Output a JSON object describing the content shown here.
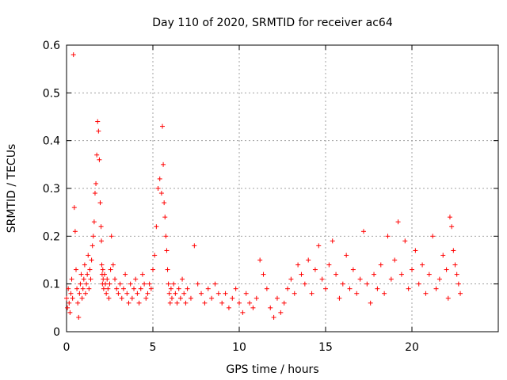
{
  "chart_data": {
    "type": "scatter",
    "title": "Day 110 of 2020, SRMTID for receiver ac64",
    "xlabel": "GPS time / hours",
    "ylabel": "SRMTID / TECUs",
    "xlim": [
      0,
      25
    ],
    "ylim": [
      0,
      0.6
    ],
    "xticks": [
      0,
      5,
      10,
      15,
      20
    ],
    "yticks": [
      0,
      0.1,
      0.2,
      0.3,
      0.4,
      0.5,
      0.6
    ],
    "xtick_labels": [
      "0",
      "5",
      "10",
      "15",
      "20"
    ],
    "ytick_labels": [
      "0",
      "0.1",
      "0.2",
      "0.3",
      "0.4",
      "0.5",
      "0.6"
    ],
    "grid": true,
    "marker": "plus",
    "color": "#ff0000",
    "series": [
      {
        "name": "SRMTID",
        "x": [
          0.0,
          0.05,
          0.1,
          0.15,
          0.2,
          0.25,
          0.3,
          0.35,
          0.4,
          0.45,
          0.5,
          0.55,
          0.6,
          0.65,
          0.7,
          0.75,
          0.8,
          0.85,
          0.9,
          0.95,
          1.0,
          1.05,
          1.1,
          1.15,
          1.2,
          1.25,
          1.3,
          1.35,
          1.4,
          1.45,
          1.5,
          1.55,
          1.6,
          1.65,
          1.7,
          1.75,
          1.8,
          1.85,
          1.9,
          1.95,
          2.0,
          2.02,
          2.04,
          2.06,
          2.08,
          2.1,
          2.12,
          2.15,
          2.2,
          2.25,
          2.3,
          2.35,
          2.4,
          2.45,
          2.5,
          2.55,
          2.6,
          2.7,
          2.8,
          2.9,
          3.0,
          3.1,
          3.2,
          3.3,
          3.4,
          3.5,
          3.6,
          3.7,
          3.8,
          3.9,
          4.0,
          4.1,
          4.2,
          4.3,
          4.4,
          4.5,
          4.6,
          4.7,
          4.8,
          4.9,
          5.0,
          5.1,
          5.2,
          5.3,
          5.4,
          5.5,
          5.55,
          5.6,
          5.65,
          5.7,
          5.75,
          5.8,
          5.85,
          5.9,
          5.95,
          6.0,
          6.05,
          6.1,
          6.2,
          6.3,
          6.4,
          6.5,
          6.6,
          6.7,
          6.8,
          6.9,
          7.0,
          7.2,
          7.4,
          7.6,
          7.8,
          8.0,
          8.2,
          8.4,
          8.6,
          8.8,
          9.0,
          9.2,
          9.4,
          9.6,
          9.8,
          10.0,
          10.2,
          10.4,
          10.6,
          10.8,
          11.0,
          11.2,
          11.4,
          11.6,
          11.8,
          12.0,
          12.2,
          12.4,
          12.6,
          12.8,
          13.0,
          13.2,
          13.4,
          13.6,
          13.8,
          14.0,
          14.2,
          14.4,
          14.6,
          14.8,
          15.0,
          15.2,
          15.4,
          15.6,
          15.8,
          16.0,
          16.2,
          16.4,
          16.6,
          16.8,
          17.0,
          17.2,
          17.4,
          17.6,
          17.8,
          18.0,
          18.2,
          18.4,
          18.6,
          18.8,
          19.0,
          19.2,
          19.4,
          19.6,
          19.8,
          20.0,
          20.2,
          20.4,
          20.6,
          20.8,
          21.0,
          21.2,
          21.4,
          21.6,
          21.8,
          22.0,
          22.1,
          22.2,
          22.3,
          22.4,
          22.5,
          22.6,
          22.7,
          22.8
        ],
        "y": [
          0.07,
          0.05,
          0.09,
          0.06,
          0.04,
          0.08,
          0.11,
          0.07,
          0.58,
          0.26,
          0.21,
          0.13,
          0.09,
          0.06,
          0.03,
          0.08,
          0.1,
          0.12,
          0.07,
          0.09,
          0.11,
          0.14,
          0.08,
          0.1,
          0.12,
          0.16,
          0.09,
          0.13,
          0.11,
          0.15,
          0.18,
          0.2,
          0.23,
          0.29,
          0.31,
          0.37,
          0.44,
          0.42,
          0.36,
          0.27,
          0.22,
          0.19,
          0.14,
          0.12,
          0.1,
          0.13,
          0.11,
          0.09,
          0.12,
          0.1,
          0.08,
          0.11,
          0.09,
          0.07,
          0.1,
          0.13,
          0.2,
          0.14,
          0.11,
          0.09,
          0.08,
          0.1,
          0.07,
          0.09,
          0.12,
          0.08,
          0.06,
          0.1,
          0.07,
          0.09,
          0.11,
          0.08,
          0.06,
          0.09,
          0.12,
          0.1,
          0.07,
          0.08,
          0.1,
          0.09,
          0.13,
          0.16,
          0.22,
          0.3,
          0.32,
          0.29,
          0.43,
          0.35,
          0.27,
          0.24,
          0.2,
          0.17,
          0.13,
          0.1,
          0.08,
          0.06,
          0.09,
          0.07,
          0.1,
          0.08,
          0.06,
          0.09,
          0.07,
          0.11,
          0.08,
          0.06,
          0.09,
          0.07,
          0.18,
          0.1,
          0.08,
          0.06,
          0.09,
          0.07,
          0.1,
          0.08,
          0.06,
          0.08,
          0.05,
          0.07,
          0.09,
          0.06,
          0.04,
          0.08,
          0.06,
          0.05,
          0.07,
          0.15,
          0.12,
          0.09,
          0.05,
          0.03,
          0.07,
          0.04,
          0.06,
          0.09,
          0.11,
          0.08,
          0.14,
          0.12,
          0.1,
          0.15,
          0.08,
          0.13,
          0.18,
          0.11,
          0.09,
          0.14,
          0.19,
          0.12,
          0.07,
          0.1,
          0.16,
          0.09,
          0.13,
          0.08,
          0.11,
          0.21,
          0.1,
          0.06,
          0.12,
          0.09,
          0.14,
          0.08,
          0.2,
          0.11,
          0.15,
          0.23,
          0.12,
          0.19,
          0.09,
          0.13,
          0.17,
          0.1,
          0.14,
          0.08,
          0.12,
          0.2,
          0.09,
          0.11,
          0.16,
          0.13,
          0.07,
          0.24,
          0.22,
          0.17,
          0.14,
          0.12,
          0.1,
          0.08
        ]
      }
    ]
  }
}
